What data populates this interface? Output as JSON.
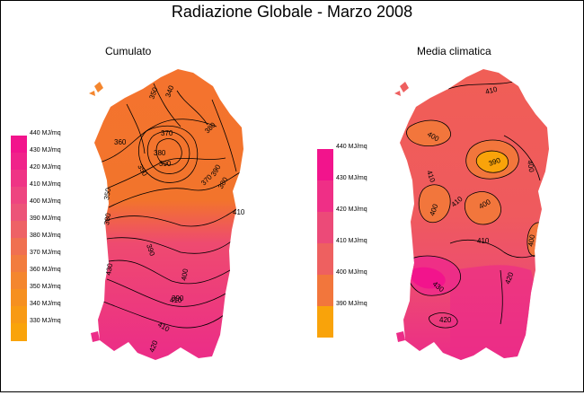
{
  "title": "Radiazione Globale - Marzo 2008",
  "maps": {
    "left": {
      "title": "Cumulato",
      "legend": [
        "440 MJ/mq",
        "430 MJ/mq",
        "420 MJ/mq",
        "410 MJ/mq",
        "400 MJ/mq",
        "390 MJ/mq",
        "380 MJ/mq",
        "370 MJ/mq",
        "360 MJ/mq",
        "350 MJ/mq",
        "340 MJ/mq",
        "330 MJ/mq"
      ],
      "legend_colors": [
        "#f2148c",
        "#f0238a",
        "#ef3485",
        "#ee4580",
        "#ec5478",
        "#ee6266",
        "#f07050",
        "#f27c3e",
        "#f4862e",
        "#f69020",
        "#f89a14",
        "#f9a30a"
      ],
      "contour_labels": [
        "340",
        "350",
        "370",
        "380",
        "390",
        "360",
        "380",
        "390",
        "350",
        "370",
        "380",
        "410",
        "380",
        "400",
        "410",
        "350",
        "390",
        "430",
        "390",
        "410",
        "420"
      ]
    },
    "right": {
      "title": "Media climatica",
      "legend": [
        "440 MJ/mq",
        "430 MJ/mq",
        "420 MJ/mq",
        "410 MJ/mq",
        "400 MJ/mq",
        "390 MJ/mq"
      ],
      "legend_colors": [
        "#f2148c",
        "#ef2f86",
        "#ec4a78",
        "#ee6060",
        "#f2763c",
        "#f9a30a"
      ],
      "contour_labels": [
        "410",
        "400",
        "390",
        "400",
        "410",
        "400",
        "400",
        "410",
        "410",
        "400",
        "420",
        "430",
        "420"
      ]
    }
  }
}
